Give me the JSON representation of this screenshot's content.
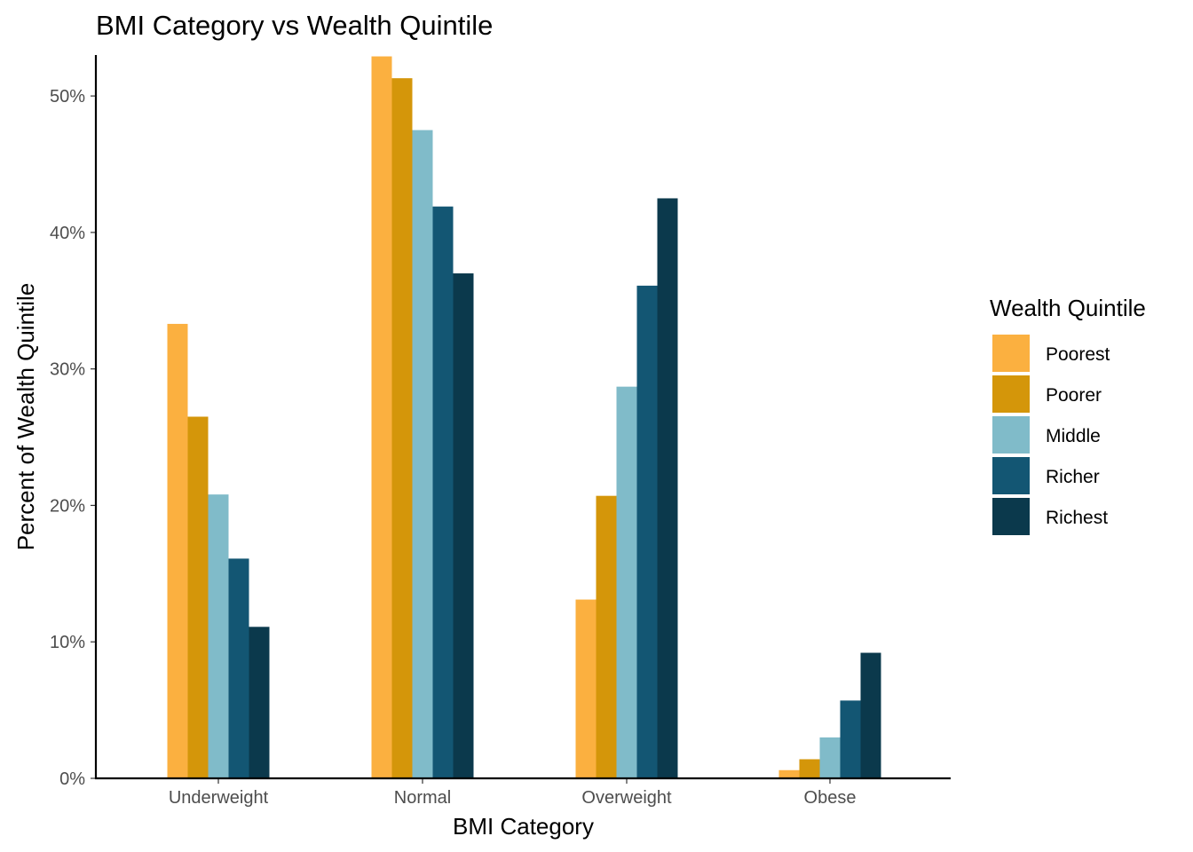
{
  "chart_data": {
    "type": "bar",
    "title": "BMI Category vs Wealth Quintile",
    "xlabel": "BMI Category",
    "ylabel": "Percent of Wealth Quintile",
    "categories": [
      "Underweight",
      "Normal",
      "Overweight",
      "Obese"
    ],
    "ylim": [
      0,
      0.53
    ],
    "yticks": [
      0,
      0.1,
      0.2,
      0.3,
      0.4,
      0.5
    ],
    "ytick_labels": [
      "0%",
      "10%",
      "20%",
      "30%",
      "40%",
      "50%"
    ],
    "grid": false,
    "legend": {
      "title": "Wealth Quintile",
      "position": "right"
    },
    "series": [
      {
        "name": "Poorest",
        "color": "#FBB040",
        "values": [
          0.333,
          0.529,
          0.131,
          0.006
        ]
      },
      {
        "name": "Poorer",
        "color": "#D4960A",
        "values": [
          0.265,
          0.513,
          0.207,
          0.014
        ]
      },
      {
        "name": "Middle",
        "color": "#80BBC9",
        "values": [
          0.208,
          0.475,
          0.287,
          0.03
        ]
      },
      {
        "name": "Richer",
        "color": "#135673",
        "values": [
          0.161,
          0.419,
          0.361,
          0.057
        ]
      },
      {
        "name": "Richest",
        "color": "#0B394C",
        "values": [
          0.111,
          0.37,
          0.425,
          0.092
        ]
      }
    ]
  }
}
